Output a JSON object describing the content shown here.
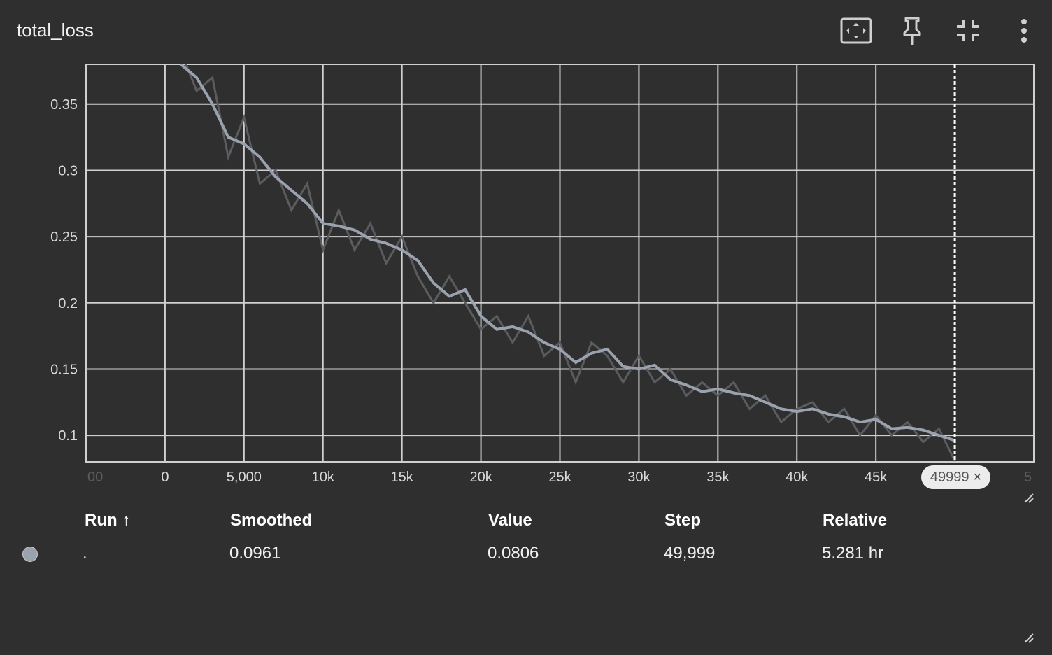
{
  "card": {
    "title": "total_loss"
  },
  "toolbar": {
    "fit_icon": "fit-domain-icon",
    "pin_icon": "pin-icon",
    "collapse_icon": "collapse-icon",
    "menu_icon": "more-vert-icon"
  },
  "chart_data": {
    "type": "line",
    "xlabel": "",
    "ylabel": "",
    "xlim": [
      -5000,
      55000
    ],
    "ylim": [
      0.08,
      0.38
    ],
    "x_ticks": [
      {
        "v": 0,
        "label": "0"
      },
      {
        "v": 5000,
        "label": "5,000"
      },
      {
        "v": 10000,
        "label": "10k"
      },
      {
        "v": 15000,
        "label": "15k"
      },
      {
        "v": 20000,
        "label": "20k"
      },
      {
        "v": 25000,
        "label": "25k"
      },
      {
        "v": 30000,
        "label": "30k"
      },
      {
        "v": 35000,
        "label": "35k"
      },
      {
        "v": 40000,
        "label": "40k"
      },
      {
        "v": 45000,
        "label": "45k"
      }
    ],
    "y_ticks": [
      {
        "v": 0.1,
        "label": "0.1"
      },
      {
        "v": 0.15,
        "label": "0.15"
      },
      {
        "v": 0.2,
        "label": "0.2"
      },
      {
        "v": 0.25,
        "label": "0.25"
      },
      {
        "v": 0.3,
        "label": "0.3"
      },
      {
        "v": 0.35,
        "label": "0.35"
      }
    ],
    "grid": true,
    "cursor_step": 49999,
    "series": [
      {
        "name": "",
        "color": "#9aa3ad",
        "raw_color": "#5a5c60",
        "x": [
          1000,
          2000,
          3000,
          4000,
          5000,
          6000,
          7000,
          8000,
          9000,
          10000,
          11000,
          12000,
          13000,
          14000,
          15000,
          16000,
          17000,
          18000,
          19000,
          20000,
          21000,
          22000,
          23000,
          24000,
          25000,
          26000,
          27000,
          28000,
          29000,
          30000,
          31000,
          32000,
          33000,
          34000,
          35000,
          36000,
          37000,
          38000,
          39000,
          40000,
          41000,
          42000,
          43000,
          44000,
          45000,
          46000,
          47000,
          48000,
          49000,
          49999
        ],
        "smoothed": [
          0.38,
          0.37,
          0.35,
          0.325,
          0.32,
          0.31,
          0.295,
          0.285,
          0.275,
          0.26,
          0.258,
          0.255,
          0.248,
          0.245,
          0.24,
          0.232,
          0.215,
          0.205,
          0.21,
          0.19,
          0.18,
          0.182,
          0.178,
          0.17,
          0.165,
          0.155,
          0.162,
          0.165,
          0.152,
          0.15,
          0.153,
          0.142,
          0.138,
          0.133,
          0.135,
          0.132,
          0.13,
          0.125,
          0.12,
          0.118,
          0.12,
          0.116,
          0.114,
          0.11,
          0.112,
          0.105,
          0.106,
          0.104,
          0.1,
          0.0961
        ],
        "raw": [
          0.39,
          0.36,
          0.37,
          0.31,
          0.34,
          0.29,
          0.3,
          0.27,
          0.29,
          0.24,
          0.27,
          0.24,
          0.26,
          0.23,
          0.25,
          0.22,
          0.2,
          0.22,
          0.2,
          0.18,
          0.19,
          0.17,
          0.19,
          0.16,
          0.17,
          0.14,
          0.17,
          0.16,
          0.14,
          0.16,
          0.14,
          0.15,
          0.13,
          0.14,
          0.13,
          0.14,
          0.12,
          0.13,
          0.11,
          0.12,
          0.125,
          0.11,
          0.12,
          0.1,
          0.115,
          0.1,
          0.11,
          0.095,
          0.105,
          0.0806
        ]
      }
    ]
  },
  "cursor_pill": {
    "label": "49999",
    "close": "×"
  },
  "x_axis_edge": {
    "left": "00",
    "right": "5"
  },
  "table": {
    "headers": {
      "run": "Run",
      "run_sort": "↑",
      "smoothed": "Smoothed",
      "value": "Value",
      "step": "Step",
      "relative": "Relative"
    },
    "rows": [
      {
        "color": "#9aa3ad",
        "run": ".",
        "smoothed": "0.0961",
        "value": "0.0806",
        "step": "49,999",
        "relative": "5.281 hr"
      }
    ]
  }
}
